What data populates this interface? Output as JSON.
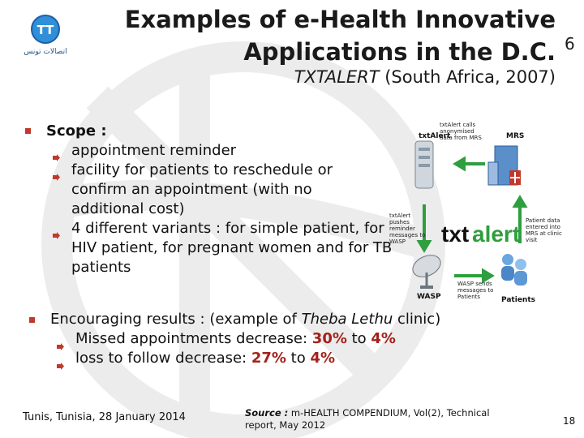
{
  "header": {
    "title_line1": "Examples of e-Health Innovative",
    "title_line2": "Applications in the D.C.",
    "title_number": "6",
    "subtitle_italic": "TXTALERT",
    "subtitle_rest": " (South Africa, 2007)"
  },
  "logo": {
    "text": "اتصالات تونس",
    "initials": "TT"
  },
  "scope": {
    "heading": "Scope :",
    "items": [
      "appointment reminder",
      "facility for patients to reschedule or confirm an appointment (with no additional cost)",
      "4 different variants : for simple patient, for HIV patient, for pregnant women and for TB patients"
    ]
  },
  "results": {
    "heading_prefix": "Encouraging results : (example of ",
    "heading_italic": "Theba Lethu",
    "heading_suffix": " clinic)",
    "items": [
      {
        "label": "Missed appointments decrease: ",
        "from": "30%",
        "joiner": " to ",
        "to": "4%"
      },
      {
        "label": "loss to follow decrease: ",
        "from": "27%",
        "joiner": " to ",
        "to": "4%"
      }
    ]
  },
  "diagram": {
    "txtalert_label": "txtAlert",
    "mrs_label": "MRS",
    "center_brand_a": "txt",
    "center_brand_b": "alert",
    "wasp_label": "WASP",
    "patients_label": "Patients",
    "note_top": "txtAlert calls anonymised data from MRS",
    "note_left": "txtAlert pushes reminder messages to WASP",
    "note_right": "Patient data entered into MRS at clinic visit",
    "note_bottom": "WASP sends messages to Patients"
  },
  "footer": {
    "left": "Tunis, Tunisia, 28 January 2014",
    "source_label": "Source :",
    "source_text": " m-HEALTH COMPENDIUM, Vol(2), Technical report, May 2012",
    "page_number": "18"
  },
  "colors": {
    "bullet_red": "#c0392b",
    "highlight_red": "#a3221b",
    "watermark": "#ececec"
  }
}
